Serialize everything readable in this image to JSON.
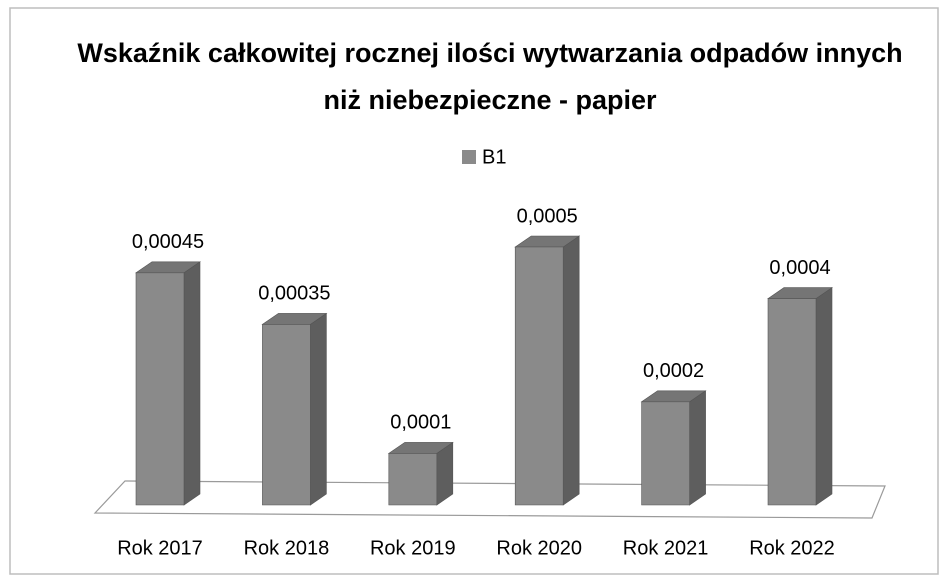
{
  "chart_data": {
    "type": "bar3d",
    "title": "Wskaźnik całkowitej rocznej ilości wytwarzania odpadów innych niż niebezpieczne  - papier",
    "categories": [
      "Rok 2017",
      "Rok 2018",
      "Rok 2019",
      "Rok 2020",
      "Rok 2021",
      "Rok 2022"
    ],
    "series": [
      {
        "name": "B1",
        "color": "#8a8a8a",
        "values": [
          0.00045,
          0.00035,
          0.0001,
          0.0005,
          0.0002,
          0.0004
        ],
        "value_labels": [
          "0,00045",
          "0,00035",
          "0,0001",
          "0,0005",
          "0,0002",
          "0,0004"
        ]
      }
    ]
  }
}
